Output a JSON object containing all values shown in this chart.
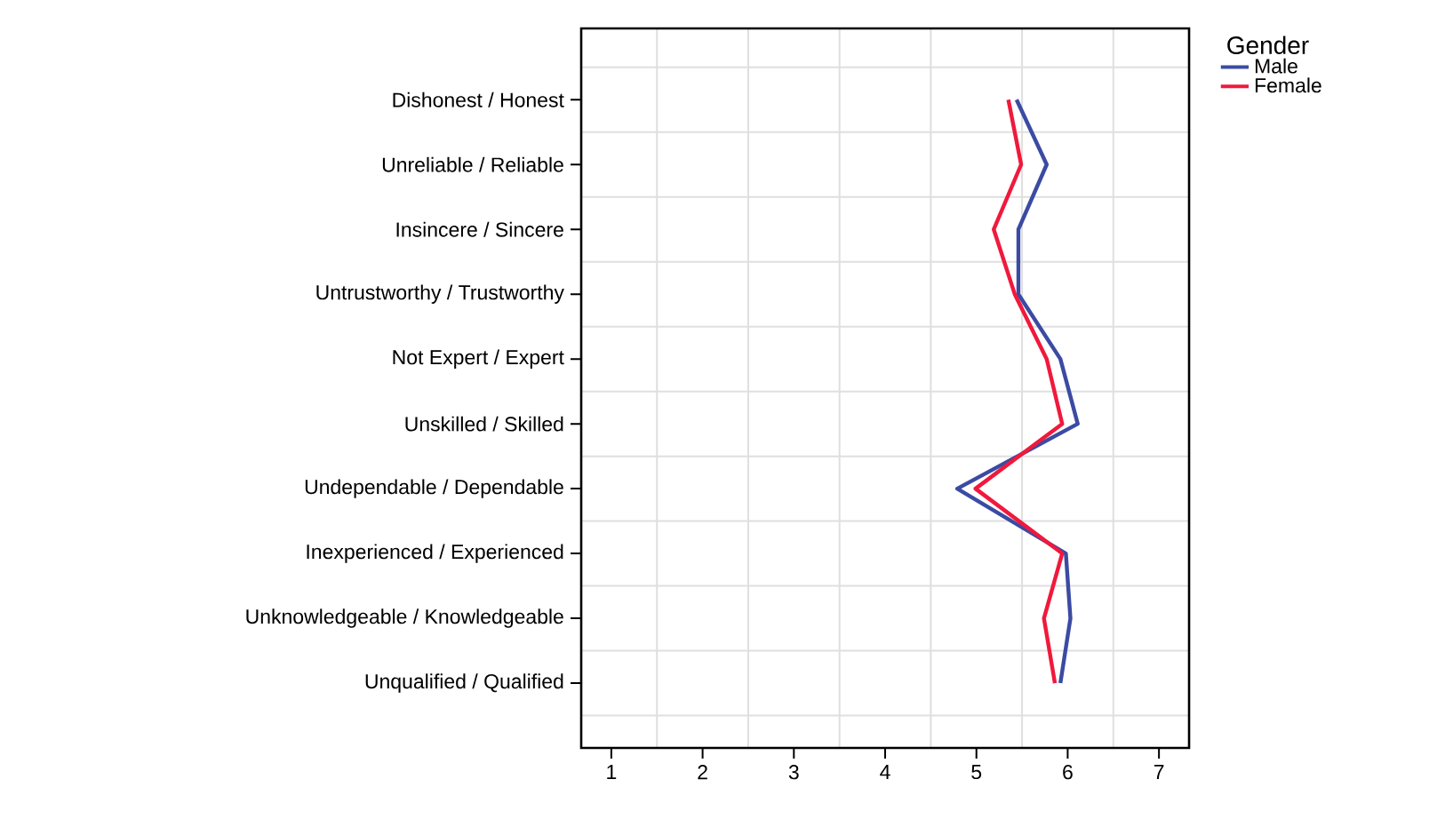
{
  "chart_data": {
    "type": "line",
    "orientation": "horizontal",
    "categories": [
      "Dishonest / Honest",
      "Unreliable / Reliable",
      "Insincere / Sincere",
      "Untrustworthy / Trustworthy",
      "Not Expert / Expert",
      "Unskilled / Skilled",
      "Undependable / Dependable",
      "Inexperienced / Experienced",
      "Unknowledgeable / Knowledgeable",
      "Unqualified / Qualified"
    ],
    "series": [
      {
        "name": "Male",
        "color": "#3b4ba3",
        "values": [
          5.44,
          5.77,
          5.46,
          5.46,
          5.92,
          6.11,
          4.79,
          5.98,
          6.03,
          5.92
        ]
      },
      {
        "name": "Female",
        "color": "#f0193c",
        "values": [
          5.35,
          5.49,
          5.19,
          5.42,
          5.77,
          5.94,
          4.99,
          5.94,
          5.74,
          5.86
        ]
      }
    ],
    "xlim": [
      0.67,
      7.33
    ],
    "xticks": [
      1,
      2,
      3,
      4,
      5,
      6,
      7
    ],
    "legend_title": "Gender",
    "legend": "top right",
    "grid": true,
    "marker": "none",
    "line_style": "solid"
  }
}
